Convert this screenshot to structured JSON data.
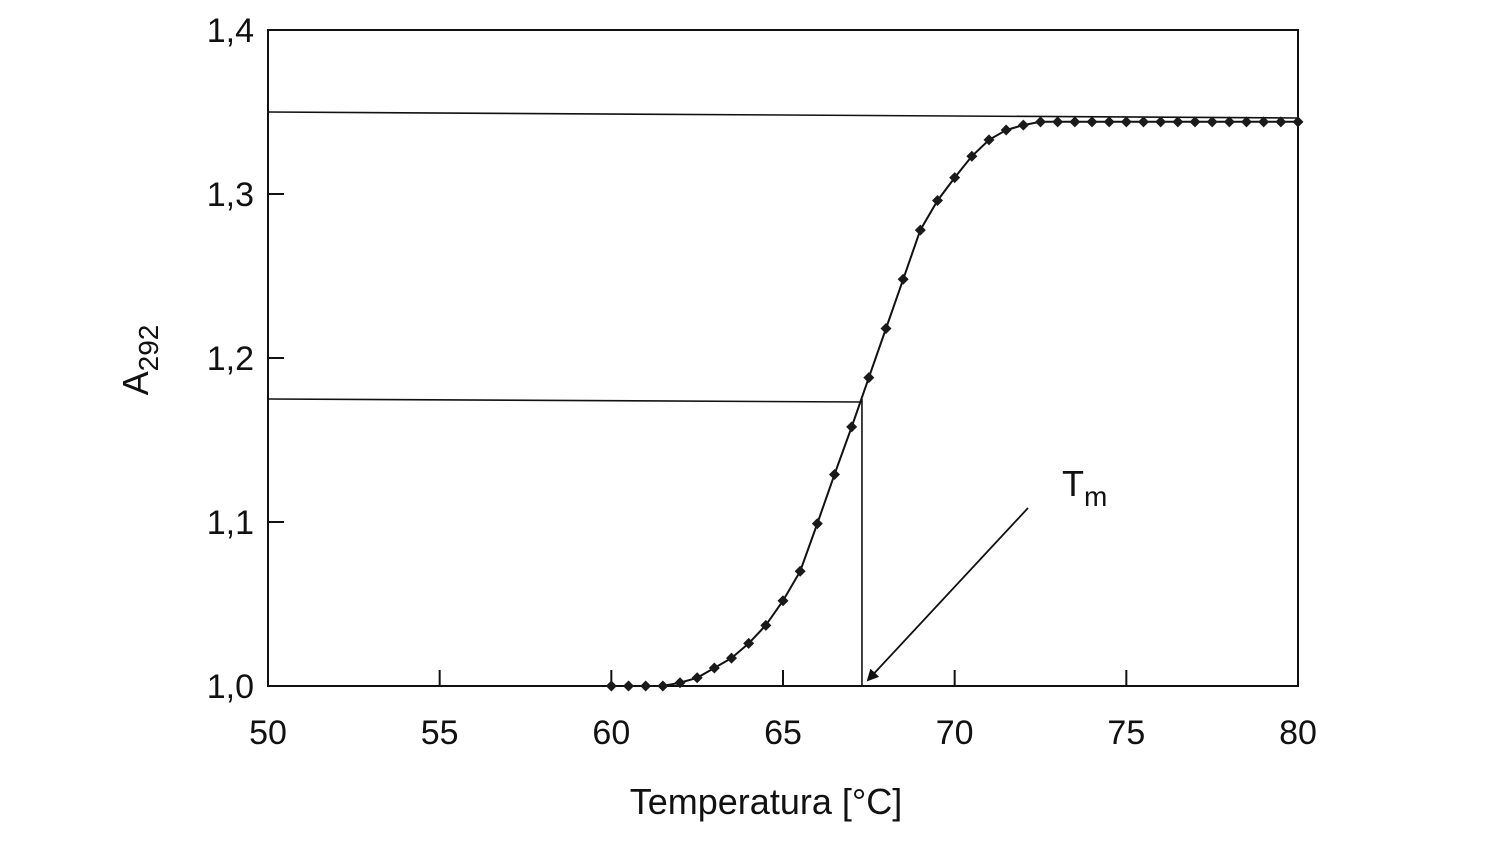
{
  "chart_data": {
    "type": "line",
    "title": "",
    "xlabel": "Temperatura [°C]",
    "ylabel": "A",
    "ylabel_sub": "292",
    "xlim": [
      50,
      80
    ],
    "ylim": [
      1.0,
      1.4
    ],
    "xticks": [
      50,
      55,
      60,
      65,
      70,
      75,
      80
    ],
    "yticks": [
      1.0,
      1.1,
      1.2,
      1.3,
      1.4
    ],
    "xtick_labels": [
      "50",
      "55",
      "60",
      "65",
      "70",
      "75",
      "80"
    ],
    "ytick_labels": [
      "1,0",
      "1,1",
      "1,2",
      "1,3",
      "1,4"
    ],
    "grid": false,
    "legend": "none",
    "series": [
      {
        "marker": "diamond",
        "color": "#1a1a1a",
        "x": [
          60.0,
          60.5,
          61.0,
          61.5,
          62.0,
          62.5,
          63.0,
          63.5,
          64.0,
          64.5,
          65.0,
          65.5,
          66.0,
          66.5,
          67.0,
          67.5,
          68.0,
          68.5,
          69.0,
          69.5,
          70.0,
          70.5,
          71.0,
          71.5,
          72.0,
          72.5,
          73.0,
          73.5,
          74.0,
          74.5,
          75.0,
          75.5,
          76.0,
          76.5,
          77.0,
          77.5,
          78.0,
          78.5,
          79.0,
          79.5,
          80.0
        ],
        "y": [
          1.0,
          1.0,
          1.0,
          1.0,
          1.002,
          1.005,
          1.011,
          1.017,
          1.026,
          1.037,
          1.052,
          1.07,
          1.099,
          1.129,
          1.158,
          1.188,
          1.218,
          1.248,
          1.278,
          1.296,
          1.31,
          1.323,
          1.333,
          1.339,
          1.342,
          1.344,
          1.344,
          1.344,
          1.344,
          1.344,
          1.344,
          1.344,
          1.344,
          1.344,
          1.344,
          1.344,
          1.344,
          1.344,
          1.344,
          1.344,
          1.344
        ]
      }
    ],
    "reference_lines": {
      "upper_plateau_y": 1.35,
      "midpoint_y": 1.175,
      "tm_x": 67.3
    },
    "annotations": [
      {
        "text": "T",
        "sub": "m",
        "points_to": [
          67.3,
          1.0
        ]
      }
    ]
  }
}
